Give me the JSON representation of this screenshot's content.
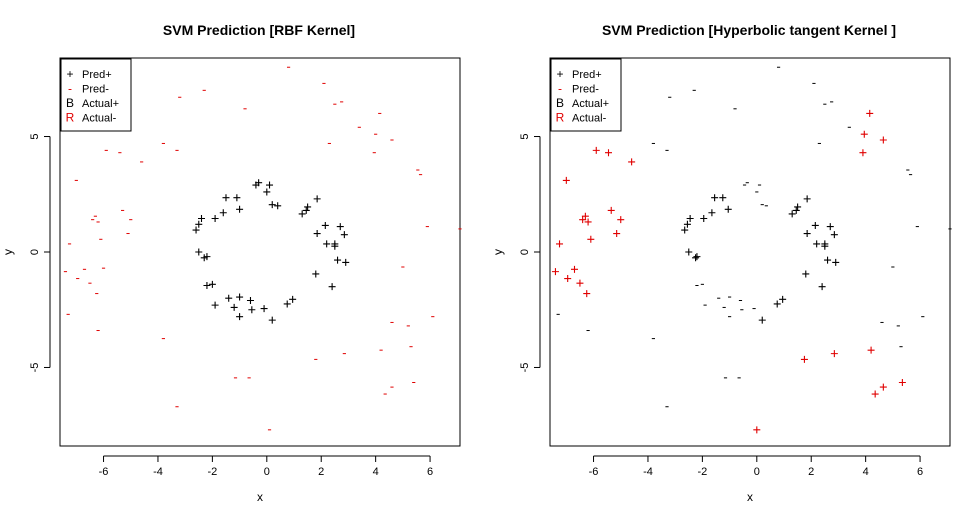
{
  "colors": {
    "black": "#000000",
    "red": "#e00000"
  },
  "legend": [
    {
      "symbol": "+",
      "label": "Pred+",
      "color": "#000000"
    },
    {
      "symbol": "-",
      "label": "Pred-",
      "color": "#e00000"
    },
    {
      "symbol": "B",
      "label": "Actual+",
      "color": "#000000"
    },
    {
      "symbol": "R",
      "label": "Actual-",
      "color": "#e00000"
    }
  ],
  "chart_data": [
    {
      "type": "scatter",
      "title": "SVM Prediction [RBF Kernel]",
      "xlabel": "x",
      "ylabel": "y",
      "xlim": [
        -7.6,
        7.1
      ],
      "ylim": [
        -8.4,
        8.4
      ],
      "xticks": [
        -6,
        -4,
        -2,
        0,
        2,
        4,
        6
      ],
      "yticks": [
        -5,
        0,
        5
      ],
      "legend_position": "top-left",
      "grid": false,
      "series": [
        {
          "name": "Pred+",
          "symbol": "+",
          "color": "#000000",
          "points": [
            [
              -0.4,
              2.9
            ],
            [
              -0.3,
              3.0
            ],
            [
              0.0,
              2.6
            ],
            [
              0.1,
              2.9
            ],
            [
              0.2,
              2.05
            ],
            [
              0.4,
              2.0
            ],
            [
              -1.5,
              2.35
            ],
            [
              -1.1,
              2.35
            ],
            [
              -1.6,
              1.7
            ],
            [
              -1.9,
              1.45
            ],
            [
              -1.0,
              1.85
            ],
            [
              -2.4,
              1.45
            ],
            [
              -2.5,
              1.2
            ],
            [
              -2.6,
              0.95
            ],
            [
              -2.5,
              0.0
            ],
            [
              -2.3,
              -0.25
            ],
            [
              -2.2,
              -0.2
            ],
            [
              -2.2,
              -1.45
            ],
            [
              -2.0,
              -1.4
            ],
            [
              -1.9,
              -2.3
            ],
            [
              -1.4,
              -2.0
            ],
            [
              -1.0,
              -1.95
            ],
            [
              -1.2,
              -2.4
            ],
            [
              -1.0,
              -2.8
            ],
            [
              -0.6,
              -2.1
            ],
            [
              -0.55,
              -2.5
            ],
            [
              -0.1,
              -2.45
            ],
            [
              0.2,
              -2.95
            ],
            [
              0.75,
              -2.25
            ],
            [
              0.95,
              -2.05
            ],
            [
              1.85,
              2.3
            ],
            [
              1.3,
              1.65
            ],
            [
              1.45,
              1.8
            ],
            [
              1.5,
              1.95
            ],
            [
              1.85,
              0.8
            ],
            [
              2.15,
              1.15
            ],
            [
              2.2,
              0.35
            ],
            [
              2.5,
              0.25
            ],
            [
              2.5,
              0.35
            ],
            [
              2.7,
              1.1
            ],
            [
              2.85,
              0.75
            ],
            [
              2.6,
              -0.35
            ],
            [
              2.9,
              -0.45
            ],
            [
              1.8,
              -0.95
            ],
            [
              2.4,
              -1.5
            ]
          ]
        },
        {
          "name": "Pred-",
          "symbol": "-",
          "color": "#e00000",
          "points": [
            [
              0.8,
              8.0
            ],
            [
              2.1,
              7.3
            ],
            [
              -2.3,
              7.0
            ],
            [
              -3.2,
              6.7
            ],
            [
              2.5,
              6.4
            ],
            [
              2.75,
              6.5
            ],
            [
              4.15,
              6.0
            ],
            [
              -0.8,
              6.2
            ],
            [
              3.4,
              5.4
            ],
            [
              4.0,
              5.1
            ],
            [
              4.6,
              4.85
            ],
            [
              -3.8,
              4.7
            ],
            [
              -3.3,
              4.4
            ],
            [
              2.3,
              4.7
            ],
            [
              -5.9,
              4.4
            ],
            [
              -5.4,
              4.3
            ],
            [
              3.95,
              4.3
            ],
            [
              -4.6,
              3.9
            ],
            [
              5.55,
              3.55
            ],
            [
              5.65,
              3.35
            ],
            [
              -7.0,
              3.1
            ],
            [
              -5.3,
              1.8
            ],
            [
              -6.4,
              1.4
            ],
            [
              -6.2,
              1.3
            ],
            [
              -6.3,
              1.55
            ],
            [
              -5.0,
              1.4
            ],
            [
              5.9,
              1.1
            ],
            [
              7.1,
              1.0
            ],
            [
              -5.1,
              0.8
            ],
            [
              -6.1,
              0.55
            ],
            [
              -7.25,
              0.35
            ],
            [
              -6.0,
              -0.7
            ],
            [
              5.0,
              -0.65
            ],
            [
              -7.4,
              -0.85
            ],
            [
              -6.7,
              -0.75
            ],
            [
              -6.95,
              -1.15
            ],
            [
              -6.5,
              -1.35
            ],
            [
              -6.25,
              -1.8
            ],
            [
              -7.3,
              -2.7
            ],
            [
              6.1,
              -2.8
            ],
            [
              4.6,
              -3.05
            ],
            [
              5.2,
              -3.2
            ],
            [
              -6.2,
              -3.4
            ],
            [
              -3.8,
              -3.75
            ],
            [
              5.3,
              -4.1
            ],
            [
              4.2,
              -4.25
            ],
            [
              2.85,
              -4.4
            ],
            [
              1.8,
              -4.65
            ],
            [
              -1.15,
              -5.45
            ],
            [
              -0.65,
              -5.45
            ],
            [
              5.4,
              -5.65
            ],
            [
              4.6,
              -5.85
            ],
            [
              4.35,
              -6.15
            ],
            [
              -3.3,
              -6.7
            ],
            [
              0.1,
              -7.7
            ]
          ]
        }
      ]
    },
    {
      "type": "scatter",
      "title": "SVM Prediction [Hyperbolic tangent  Kernel ]",
      "xlabel": "x",
      "ylabel": "y",
      "xlim": [
        -7.6,
        7.1
      ],
      "ylim": [
        -8.4,
        8.4
      ],
      "xticks": [
        -6,
        -4,
        -2,
        0,
        2,
        4,
        6
      ],
      "yticks": [
        -5,
        0,
        5
      ],
      "legend_position": "top-left",
      "grid": false,
      "series": [
        {
          "name": "Pred+",
          "symbol": "+",
          "color": "#000000",
          "points": [
            [
              -1.55,
              2.35
            ],
            [
              -1.25,
              2.35
            ],
            [
              -1.65,
              1.7
            ],
            [
              -1.95,
              1.45
            ],
            [
              -1.05,
              1.85
            ],
            [
              -2.45,
              1.45
            ],
            [
              -2.55,
              1.2
            ],
            [
              -2.65,
              0.95
            ],
            [
              -2.5,
              0.0
            ],
            [
              -2.25,
              -0.25
            ],
            [
              -2.2,
              -0.2
            ],
            [
              0.2,
              -2.95
            ],
            [
              0.75,
              -2.25
            ],
            [
              0.95,
              -2.05
            ],
            [
              1.85,
              2.3
            ],
            [
              1.3,
              1.65
            ],
            [
              1.45,
              1.8
            ],
            [
              1.5,
              1.95
            ],
            [
              1.85,
              0.8
            ],
            [
              2.15,
              1.15
            ],
            [
              2.2,
              0.35
            ],
            [
              2.5,
              0.25
            ],
            [
              2.5,
              0.35
            ],
            [
              2.7,
              1.1
            ],
            [
              2.85,
              0.75
            ],
            [
              2.6,
              -0.35
            ],
            [
              2.9,
              -0.45
            ],
            [
              1.8,
              -0.95
            ],
            [
              2.4,
              -1.5
            ]
          ]
        },
        {
          "name": "Pred-",
          "symbol": "-",
          "color": "#000000",
          "points": [
            [
              -0.45,
              2.9
            ],
            [
              -0.35,
              3.0
            ],
            [
              0.0,
              2.6
            ],
            [
              0.1,
              2.9
            ],
            [
              0.2,
              2.05
            ],
            [
              0.35,
              2.0
            ],
            [
              -2.2,
              -1.45
            ],
            [
              -2.0,
              -1.4
            ],
            [
              -1.9,
              -2.3
            ],
            [
              -1.4,
              -2.0
            ],
            [
              -1.0,
              -1.95
            ],
            [
              -1.2,
              -2.4
            ],
            [
              -1.0,
              -2.8
            ],
            [
              -0.6,
              -2.1
            ],
            [
              -0.55,
              -2.5
            ],
            [
              -0.1,
              -2.45
            ]
          ]
        },
        {
          "name": "Pred+",
          "symbol": "+",
          "color": "#e00000",
          "points": [
            [
              4.15,
              6.0
            ],
            [
              3.95,
              5.1
            ],
            [
              4.65,
              4.85
            ],
            [
              3.9,
              4.3
            ],
            [
              -5.9,
              4.4
            ],
            [
              -5.45,
              4.3
            ],
            [
              -4.6,
              3.9
            ],
            [
              -7.0,
              3.1
            ],
            [
              -5.35,
              1.8
            ],
            [
              -6.4,
              1.4
            ],
            [
              -6.2,
              1.3
            ],
            [
              -6.3,
              1.55
            ],
            [
              -5.0,
              1.4
            ],
            [
              -5.15,
              0.8
            ],
            [
              -6.1,
              0.55
            ],
            [
              -7.25,
              0.35
            ],
            [
              -7.4,
              -0.85
            ],
            [
              -6.7,
              -0.75
            ],
            [
              -6.95,
              -1.15
            ],
            [
              -6.5,
              -1.35
            ],
            [
              -6.25,
              -1.8
            ],
            [
              4.2,
              -4.25
            ],
            [
              2.85,
              -4.4
            ],
            [
              1.75,
              -4.65
            ],
            [
              5.35,
              -5.65
            ],
            [
              4.65,
              -5.85
            ],
            [
              4.35,
              -6.15
            ],
            [
              0.0,
              -7.7
            ]
          ]
        },
        {
          "name": "Pred-",
          "symbol": "-",
          "color": "#000000",
          "points": [
            [
              0.8,
              8.0
            ],
            [
              2.1,
              7.3
            ],
            [
              -2.3,
              7.0
            ],
            [
              -3.2,
              6.7
            ],
            [
              2.5,
              6.4
            ],
            [
              2.75,
              6.5
            ],
            [
              -0.8,
              6.2
            ],
            [
              3.4,
              5.4
            ],
            [
              -3.8,
              4.7
            ],
            [
              -3.3,
              4.4
            ],
            [
              2.3,
              4.7
            ],
            [
              5.55,
              3.55
            ],
            [
              5.65,
              3.35
            ],
            [
              5.9,
              1.1
            ],
            [
              7.1,
              1.0
            ],
            [
              5.0,
              -0.65
            ],
            [
              -7.3,
              -2.7
            ],
            [
              6.1,
              -2.8
            ],
            [
              4.6,
              -3.05
            ],
            [
              5.2,
              -3.2
            ],
            [
              -6.2,
              -3.4
            ],
            [
              -3.8,
              -3.75
            ],
            [
              5.3,
              -4.1
            ],
            [
              -1.15,
              -5.45
            ],
            [
              -0.65,
              -5.45
            ],
            [
              -3.3,
              -6.7
            ]
          ]
        }
      ]
    }
  ]
}
